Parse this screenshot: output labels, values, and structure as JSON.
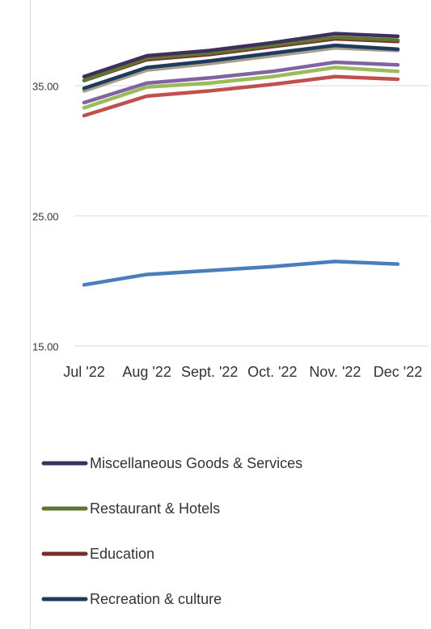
{
  "chart_data": {
    "type": "line",
    "categories": [
      "Jul '22",
      "Aug '22",
      "Sept. '22",
      "Oct. '22",
      "Nov. '22",
      "Dec '22"
    ],
    "series": [
      {
        "color": "#4a7ebb",
        "values": [
          19.7,
          20.5,
          20.8,
          21.1,
          21.5,
          21.3
        ]
      },
      {
        "color": "#c0504d",
        "values": [
          32.7,
          34.2,
          34.6,
          35.1,
          35.7,
          35.5
        ]
      },
      {
        "color": "#9bbb59",
        "values": [
          33.3,
          34.9,
          35.2,
          35.7,
          36.4,
          36.1
        ]
      },
      {
        "color": "#8064a2",
        "values": [
          33.7,
          35.2,
          35.6,
          36.1,
          36.8,
          36.6
        ]
      },
      {
        "color": "#a5a08a",
        "values": [
          34.6,
          36.2,
          36.7,
          37.3,
          37.9,
          37.7
        ]
      },
      {
        "name": "Recreation & culture",
        "color": "#1f3a5f",
        "values": [
          34.8,
          36.4,
          36.9,
          37.5,
          38.1,
          37.8
        ]
      },
      {
        "name": "Education",
        "color": "#772c2a",
        "values": [
          35.4,
          37.0,
          37.4,
          38.0,
          38.6,
          38.4
        ]
      },
      {
        "name": "Restaurant & Hotels",
        "color": "#5f7530",
        "values": [
          35.4,
          37.1,
          37.5,
          38.1,
          38.7,
          38.5
        ]
      },
      {
        "name": "Miscellaneous Goods & Services",
        "color": "#3f2f5b",
        "values": [
          35.7,
          37.3,
          37.7,
          38.3,
          39.0,
          38.8
        ]
      }
    ],
    "ylim": [
      15,
      40
    ],
    "yticks": [
      {
        "value": 15,
        "label": "15.00"
      },
      {
        "value": 25,
        "label": "25.00"
      },
      {
        "value": 35,
        "label": "35.00"
      }
    ],
    "grid": true
  }
}
